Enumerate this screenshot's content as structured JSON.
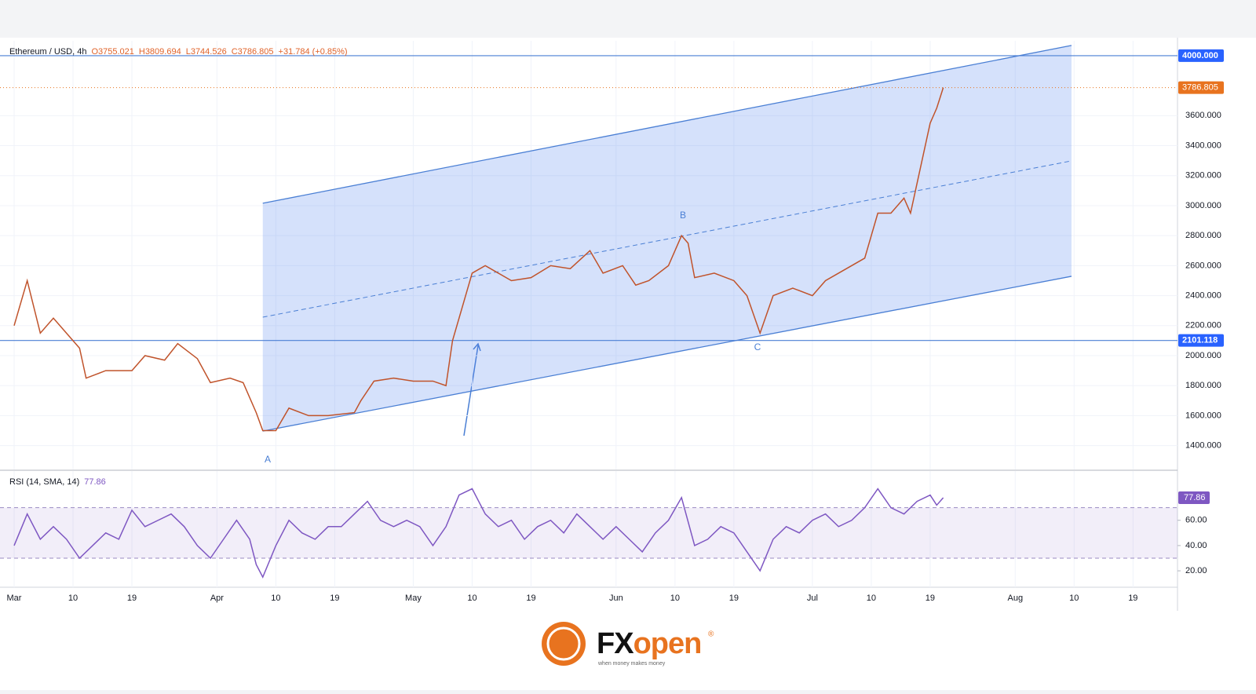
{
  "chart_data": [
    {
      "type": "line",
      "title": "Ethereum / USD, 4h",
      "ohlc": [
        "O3755.021",
        "H3809.694",
        "L3744.526",
        "C3786.805",
        "+31.784 (+0.85%)"
      ],
      "x": [
        0,
        2,
        4,
        6,
        8,
        10,
        11,
        14,
        18,
        20,
        23,
        25,
        28,
        30,
        33,
        35,
        37,
        38,
        40,
        42,
        45,
        48,
        52,
        53,
        55,
        58,
        61,
        64,
        66,
        67,
        69,
        70,
        72,
        74,
        76,
        79,
        82,
        85,
        88,
        90,
        93,
        95,
        97,
        100,
        102,
        103,
        104,
        107,
        110,
        112,
        114,
        116,
        119,
        122,
        124,
        126,
        130,
        132,
        134,
        136,
        137,
        139,
        140,
        141,
        142
      ],
      "series": [
        {
          "name": "Ethereum / USD",
          "color": "#c0532b",
          "values": [
            2200,
            2500,
            2150,
            2250,
            2150,
            2050,
            1850,
            1900,
            1900,
            2000,
            1970,
            2080,
            1980,
            1820,
            1850,
            1820,
            1620,
            1500,
            1500,
            1650,
            1600,
            1600,
            1620,
            1700,
            1830,
            1850,
            1830,
            1830,
            1800,
            2100,
            2400,
            2550,
            2600,
            2550,
            2500,
            2520,
            2600,
            2580,
            2700,
            2550,
            2600,
            2470,
            2500,
            2600,
            2800,
            2750,
            2520,
            2550,
            2500,
            2400,
            2150,
            2400,
            2450,
            2400,
            2500,
            2550,
            2650,
            2950,
            2950,
            3050,
            2950,
            3350,
            3550,
            3650,
            3786.805
          ]
        }
      ],
      "xlim": [
        -1.56,
        177.8
      ],
      "ylim": [
        1241,
        4099
      ],
      "xticks": [
        {
          "value": 0,
          "label": "Mar"
        },
        {
          "value": 9,
          "label": "10"
        },
        {
          "value": 18,
          "label": "19"
        },
        {
          "value": 31,
          "label": "Apr"
        },
        {
          "value": 40,
          "label": "10"
        },
        {
          "value": 49,
          "label": "19"
        },
        {
          "value": 61,
          "label": "May"
        },
        {
          "value": 70,
          "label": "10"
        },
        {
          "value": 79,
          "label": "19"
        },
        {
          "value": 92,
          "label": "Jun"
        },
        {
          "value": 101,
          "label": "10"
        },
        {
          "value": 110,
          "label": "19"
        },
        {
          "value": 122,
          "label": "Jul"
        },
        {
          "value": 131,
          "label": "10"
        },
        {
          "value": 140,
          "label": "19"
        },
        {
          "value": 153,
          "label": "Aug"
        },
        {
          "value": 162,
          "label": "10"
        },
        {
          "value": 171,
          "label": "19"
        }
      ],
      "yticks": [
        {
          "value": 1400,
          "label": "1400.000"
        },
        {
          "value": 1600,
          "label": "1600.000"
        },
        {
          "value": 1800,
          "label": "1800.000"
        },
        {
          "value": 2000,
          "label": "2000.000"
        },
        {
          "value": 2200,
          "label": "2200.000"
        },
        {
          "value": 2400,
          "label": "2400.000"
        },
        {
          "value": 2600,
          "label": "2600.000"
        },
        {
          "value": 2800,
          "label": "2800.000"
        },
        {
          "value": 3000,
          "label": "3000.000"
        },
        {
          "value": 3200,
          "label": "3200.000"
        },
        {
          "value": 3400,
          "label": "3400.000"
        },
        {
          "value": 3600,
          "label": "3600.000"
        }
      ],
      "grid": true,
      "levels": [
        {
          "value": 4000,
          "label": "4000.000"
        },
        {
          "value": 2101.118,
          "label": "2101.118"
        }
      ],
      "last_price": {
        "value": 3786.805,
        "label": "3786.805"
      },
      "channel": {
        "x": [
          38,
          161.6
        ],
        "upper": [
          3016,
          4068
        ],
        "lower": [
          1497,
          2529
        ]
      },
      "wave_labels": [
        "A",
        "B",
        "C"
      ]
    },
    {
      "type": "line",
      "title": "RSI (14, SMA, 14)",
      "current": "77.86",
      "x": [
        0,
        2,
        4,
        6,
        8,
        10,
        12,
        14,
        16,
        18,
        20,
        22,
        24,
        26,
        28,
        30,
        32,
        34,
        36,
        37,
        38,
        40,
        42,
        44,
        46,
        48,
        50,
        52,
        54,
        56,
        58,
        60,
        62,
        64,
        66,
        68,
        70,
        72,
        74,
        76,
        78,
        80,
        82,
        84,
        86,
        88,
        90,
        92,
        94,
        96,
        98,
        100,
        102,
        104,
        106,
        108,
        110,
        112,
        114,
        116,
        118,
        120,
        122,
        124,
        126,
        128,
        130,
        132,
        134,
        136,
        138,
        140,
        141,
        142
      ],
      "series": [
        {
          "name": "RSI",
          "color": "#7e57c2",
          "values": [
            40,
            65,
            45,
            55,
            45,
            30,
            40,
            50,
            45,
            68,
            55,
            60,
            65,
            55,
            40,
            30,
            45,
            60,
            45,
            25,
            15,
            40,
            60,
            50,
            45,
            55,
            55,
            65,
            75,
            60,
            55,
            60,
            55,
            40,
            55,
            80,
            85,
            65,
            55,
            60,
            45,
            55,
            60,
            50,
            65,
            55,
            45,
            55,
            45,
            35,
            50,
            60,
            78,
            40,
            45,
            55,
            50,
            35,
            20,
            45,
            55,
            50,
            60,
            65,
            55,
            60,
            70,
            85,
            70,
            65,
            75,
            80,
            72,
            77.86
          ]
        }
      ],
      "ylim": [
        7,
        99
      ],
      "yticks": [
        {
          "value": 20,
          "label": "20.00"
        },
        {
          "value": 40,
          "label": "40.00"
        },
        {
          "value": 60,
          "label": "60.00"
        }
      ],
      "bands": [
        30,
        70
      ],
      "last_value": {
        "value": 77.86,
        "label": "77.86"
      }
    }
  ],
  "footer": {
    "brand_parts": [
      "FX",
      "open"
    ],
    "mark": "®",
    "tagline": "when money makes money"
  }
}
